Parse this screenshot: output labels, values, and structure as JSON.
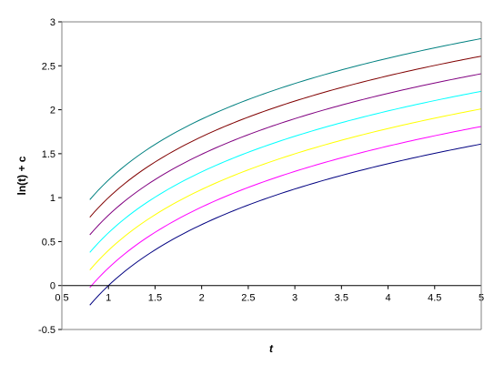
{
  "chart_data": {
    "type": "line",
    "xlabel": "t",
    "ylabel": "ln(t) + c",
    "xlim": [
      0.5,
      5
    ],
    "ylim": [
      -0.5,
      3
    ],
    "xticks": [
      "0.5",
      "1",
      "1.5",
      "2",
      "2.5",
      "3",
      "3.5",
      "4",
      "4.5",
      "5"
    ],
    "yticks": [
      "-0.5",
      "0",
      "0.5",
      "1",
      "1.5",
      "2",
      "2.5",
      "3"
    ],
    "grid": false,
    "legend": "none",
    "function": "ln(t) + c",
    "x_range": [
      0.8,
      5
    ],
    "series": [
      {
        "c": 0.0,
        "color": "#000080"
      },
      {
        "c": 0.2,
        "color": "#ff00ff"
      },
      {
        "c": 0.4,
        "color": "#ffff00"
      },
      {
        "c": 0.6,
        "color": "#00ffff"
      },
      {
        "c": 0.8,
        "color": "#800080"
      },
      {
        "c": 1.0,
        "color": "#800000"
      },
      {
        "c": 1.2,
        "color": "#008080"
      }
    ]
  }
}
